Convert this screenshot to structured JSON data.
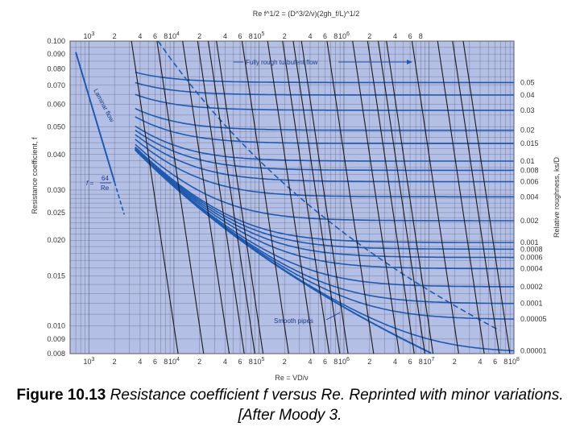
{
  "chart_data": {
    "type": "line",
    "xscale": "log",
    "yscale": "log",
    "xlim": [
      600,
      100000000
    ],
    "ylim": [
      0.008,
      0.1
    ],
    "xlabel": "Re = VD/ν",
    "ylabel": "Resistance coefficient, f",
    "top_axis_label": "Re f^1/2 = (D^3/2/ν)(2gh_f/L)^1/2",
    "right_axis_label": "Relative roughness, ks/D",
    "y_ticks": [
      "0.100",
      "0.090",
      "0.080",
      "0.070",
      "0.060",
      "0.050",
      "0.040",
      "0.030",
      "0.025",
      "0.020",
      "0.015",
      "0.010",
      "0.009",
      "0.008"
    ],
    "x_tick_labels": [
      {
        "x": 1000,
        "label": "10",
        "exp": "3"
      },
      {
        "x": 2000,
        "label": "2"
      },
      {
        "x": 4000,
        "label": "4"
      },
      {
        "x": 6000,
        "label": "6"
      },
      {
        "x": 8000,
        "label": "8"
      },
      {
        "x": 10000,
        "label": "10",
        "exp": "4"
      },
      {
        "x": 20000,
        "label": "2"
      },
      {
        "x": 40000,
        "label": "4"
      },
      {
        "x": 60000,
        "label": "6"
      },
      {
        "x": 80000,
        "label": "8"
      },
      {
        "x": 100000,
        "label": "10",
        "exp": "5"
      },
      {
        "x": 200000,
        "label": "2"
      },
      {
        "x": 400000,
        "label": "4"
      },
      {
        "x": 600000,
        "label": "6"
      },
      {
        "x": 800000,
        "label": "8"
      },
      {
        "x": 1000000,
        "label": "10",
        "exp": "6"
      },
      {
        "x": 2000000,
        "label": "2"
      },
      {
        "x": 4000000,
        "label": "4"
      },
      {
        "x": 6000000,
        "label": "6"
      },
      {
        "x": 8000000,
        "label": "8"
      },
      {
        "x": 10000000,
        "label": "10",
        "exp": "7"
      },
      {
        "x": 20000000,
        "label": "2"
      },
      {
        "x": 40000000,
        "label": "4"
      },
      {
        "x": 60000000,
        "label": "6"
      },
      {
        "x": 80000000,
        "label": "8"
      },
      {
        "x": 100000000,
        "label": "10",
        "exp": "8"
      }
    ],
    "top_tick_labels": [
      {
        "x": 1000,
        "label": "10",
        "exp": "3"
      },
      {
        "x": 2000,
        "label": "2"
      },
      {
        "x": 4000,
        "label": "4"
      },
      {
        "x": 6000,
        "label": "6"
      },
      {
        "x": 8000,
        "label": "8"
      },
      {
        "x": 10000,
        "label": "10",
        "exp": "4"
      },
      {
        "x": 20000,
        "label": "2"
      },
      {
        "x": 40000,
        "label": "4"
      },
      {
        "x": 60000,
        "label": "6"
      },
      {
        "x": 80000,
        "label": "8"
      },
      {
        "x": 100000,
        "label": "10",
        "exp": "5"
      },
      {
        "x": 200000,
        "label": "2"
      },
      {
        "x": 400000,
        "label": "4"
      },
      {
        "x": 600000,
        "label": "6"
      },
      {
        "x": 800000,
        "label": "8"
      },
      {
        "x": 1000000,
        "label": "10",
        "exp": "6"
      },
      {
        "x": 2000000,
        "label": "2"
      },
      {
        "x": 4000000,
        "label": "4"
      },
      {
        "x": 6000000,
        "label": "6"
      },
      {
        "x": 8000000,
        "label": "8"
      }
    ],
    "roughness_labels": [
      "0.05",
      "0.04",
      "0.03",
      "0.02",
      "0.015",
      "0.01",
      "0.008",
      "0.006",
      "0.004",
      "0.002",
      "0.001",
      "0.0008",
      "0.0006",
      "0.0004",
      "0.0002",
      "0.0001",
      "0.00005",
      "0.00001"
    ],
    "series_roughness": [
      0.05,
      0.04,
      0.03,
      0.02,
      0.015,
      0.01,
      0.008,
      0.006,
      0.004,
      0.002,
      0.001,
      0.0008,
      0.0006,
      0.0004,
      0.0002,
      0.0001,
      5e-05,
      1e-05
    ],
    "laminar": {
      "x_start": 700,
      "x_end": 2600,
      "formula": "f = 64/Re"
    },
    "re_sqrt_f_lines": [
      1000,
      2000,
      4000,
      6000,
      8000,
      10000,
      20000,
      40000,
      60000,
      80000,
      100000,
      200000,
      400000,
      600000,
      800000,
      1000000,
      2000000,
      4000000,
      6000000,
      8000000
    ],
    "annotations": {
      "fully_rough": "Fully rough turbulent flow",
      "laminar": "Laminar flow",
      "laminar_formula_lhs": "f =",
      "laminar_formula_num": "64",
      "laminar_formula_den": "Re",
      "smooth": "Smooth pipes"
    },
    "colors": {
      "plot_bg": "#b4bfe6",
      "grid": "#5a5f78",
      "curve": "#1e5bb0",
      "dark_line": "#1a1a1a",
      "laminar": "#1e5bb0"
    }
  },
  "caption": {
    "label": "Figure 10.13",
    "text": "Resistance coefficient f versus Re. Reprinted with minor variations. [After Moody 3."
  }
}
